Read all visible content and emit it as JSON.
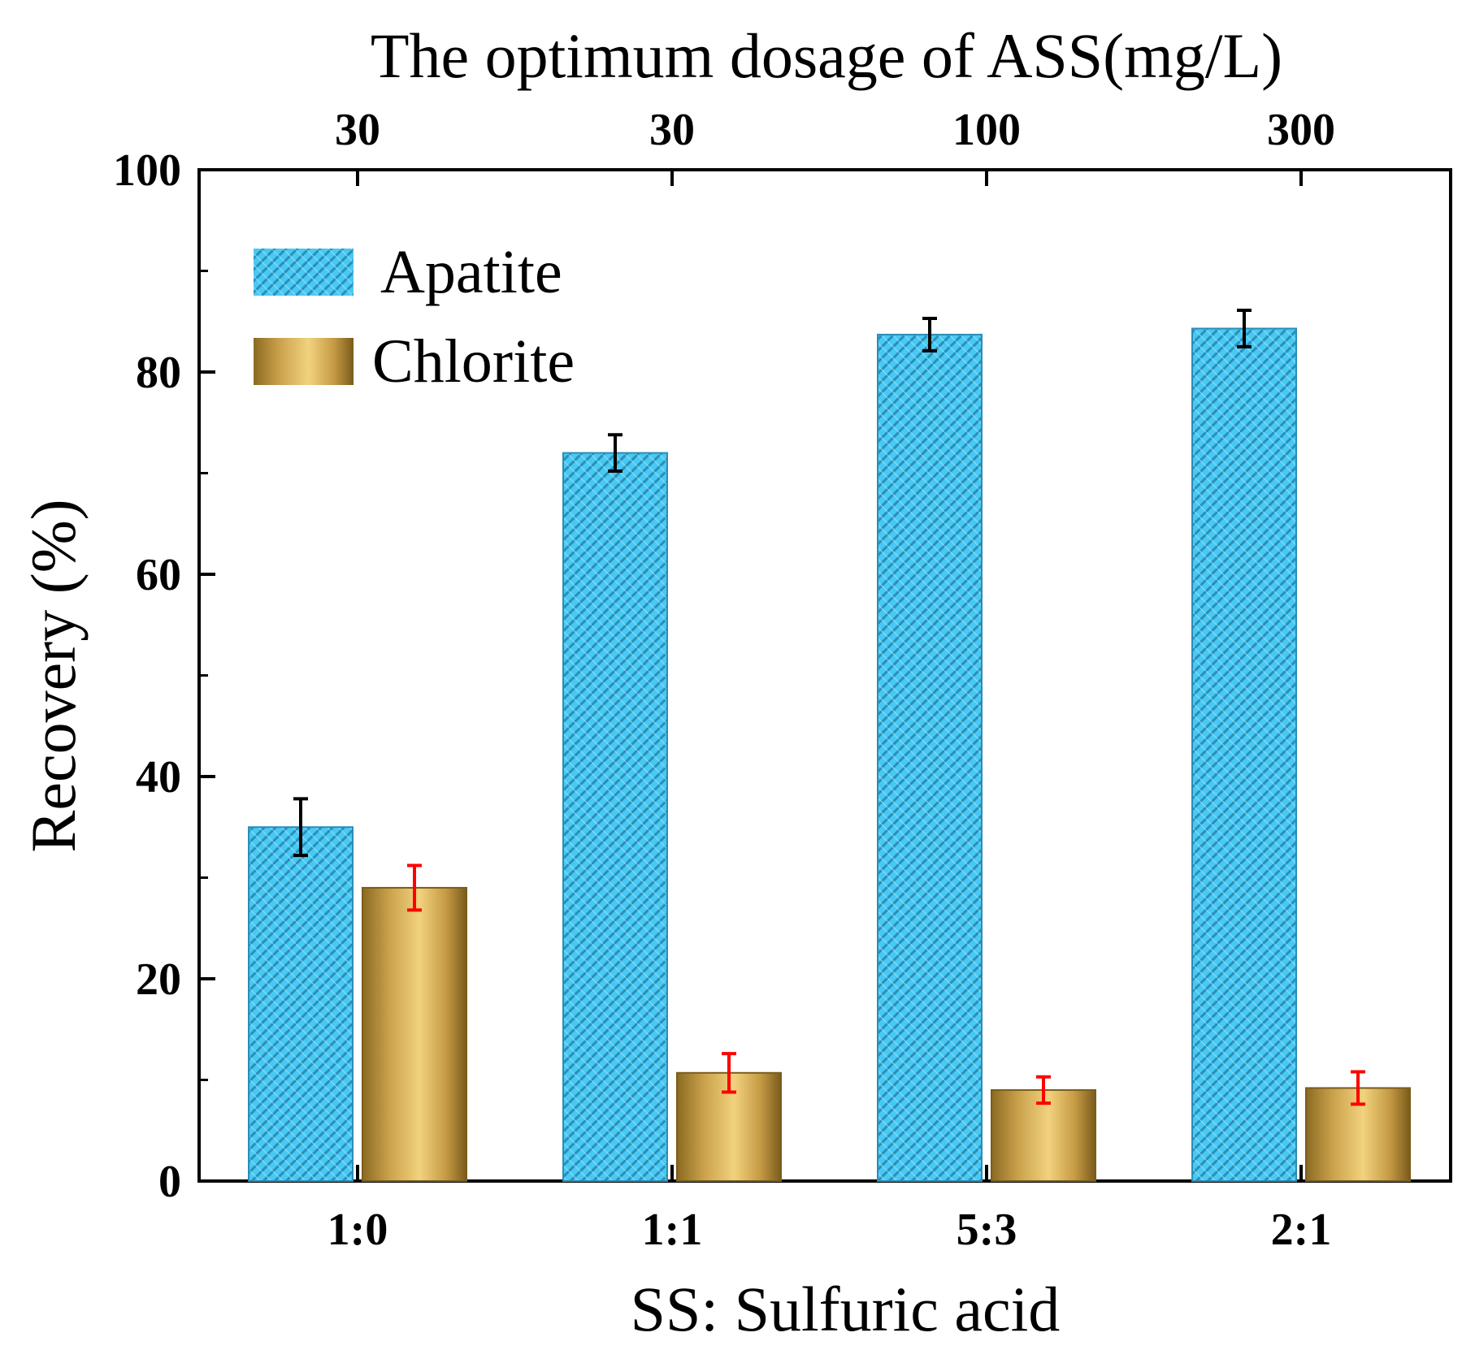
{
  "chart_data": {
    "type": "bar",
    "title": "",
    "xlabel": "SS: Sulfuric acid",
    "ylabel": "Recovery (%)",
    "top_axis_label": "The optimum dosage of ASS(mg/L)",
    "categories": [
      "1:0",
      "1:1",
      "5:3",
      "2:1"
    ],
    "top_tick_labels": [
      "30",
      "30",
      "100",
      "300"
    ],
    "ylim": [
      0,
      100
    ],
    "yticks": [
      0,
      20,
      40,
      60,
      80,
      100
    ],
    "ytick_labels": [
      "0",
      "20",
      "40",
      "60",
      "80",
      "100"
    ],
    "grid": false,
    "legend_position": "top-left",
    "series": [
      {
        "name": "Apatite",
        "values": [
          35.0,
          72.0,
          83.7,
          84.3
        ],
        "errors": [
          2.8,
          1.8,
          1.6,
          1.8
        ],
        "color": "#44c8f5",
        "error_color": "#000000"
      },
      {
        "name": "Chlorite",
        "values": [
          29.0,
          10.7,
          9.0,
          9.2
        ],
        "errors": [
          2.2,
          1.9,
          1.3,
          1.6
        ],
        "color": "#d9b45a",
        "error_color": "#ff0000"
      }
    ]
  }
}
